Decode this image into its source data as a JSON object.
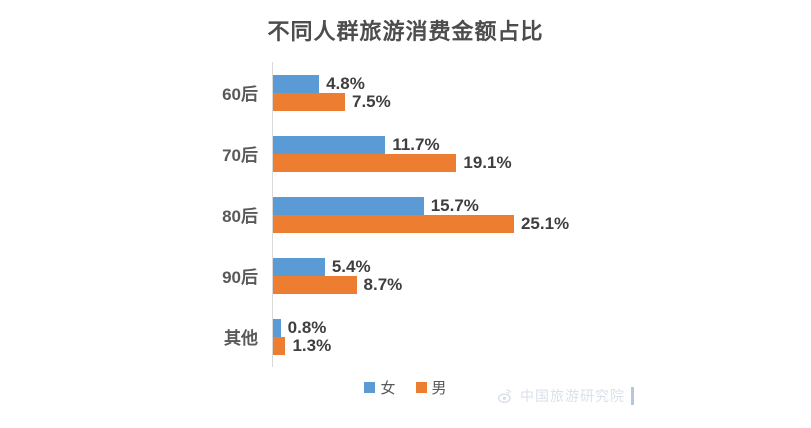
{
  "chart_data": {
    "type": "bar",
    "orientation": "horizontal",
    "title": "不同人群旅游消费金额占比",
    "categories": [
      "60后",
      "70后",
      "80后",
      "90后",
      "其他"
    ],
    "series": [
      {
        "name": "女",
        "color": "#5B9BD5",
        "values": [
          4.8,
          11.7,
          15.7,
          5.4,
          0.8
        ]
      },
      {
        "name": "男",
        "color": "#ED7D31",
        "values": [
          7.5,
          19.1,
          25.1,
          8.7,
          1.3
        ]
      }
    ],
    "value_suffix": "%",
    "xlim": [
      0,
      26
    ],
    "grid": false,
    "legend_position": "bottom",
    "data_labels": true
  },
  "colors": {
    "female_bar": "#5B9BD5",
    "male_bar": "#ED7D31",
    "title_text": "#4d4d4d",
    "axis_line": "#d9d9d9",
    "label_text": "#595959",
    "value_text": "#3f3f3f",
    "watermark_text": "#d4dce8"
  },
  "watermark": {
    "text": "中国旅游研究院",
    "icon": "weibo-logo-icon"
  }
}
